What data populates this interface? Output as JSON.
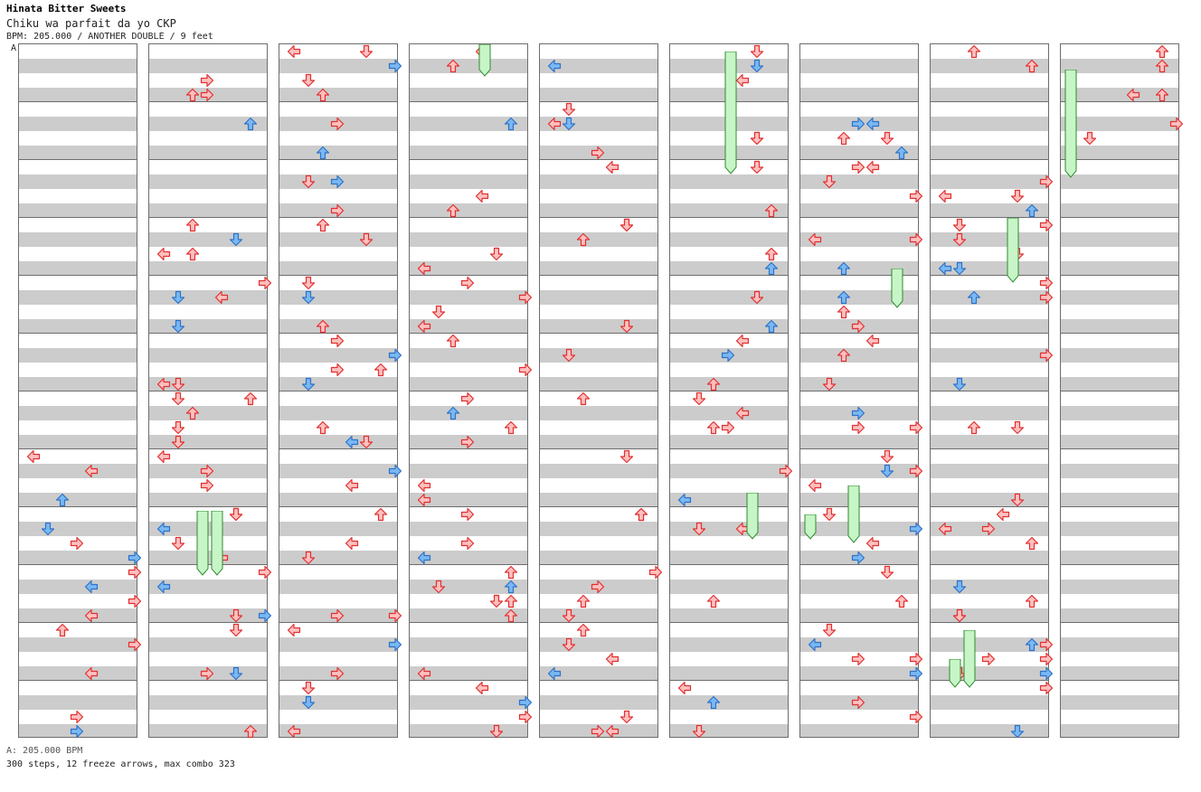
{
  "header": {
    "title": "Hinata Bitter Sweets",
    "song": "Chiku wa parfait da yo CKP",
    "info": "BPM: 205.000 / ANOTHER DOUBLE / 9 feet",
    "bpm_marker": "A"
  },
  "footer": {
    "bpm_text": "A: 205.000 BPM",
    "stats_text": "300 steps, 12 freeze arrows, max combo 323"
  },
  "colors": {
    "arrow_red_fill": "#ffc0c0",
    "arrow_red_stroke": "#e03030",
    "arrow_blue_fill": "#79b8f2",
    "arrow_blue_stroke": "#2f72c8",
    "freeze_fill": "#c7f5c7",
    "freeze_stroke": "#2e8b2e",
    "stripe_gray": "#cccccc",
    "border": "#6d6d6d",
    "bpm_line": "#3b79d6"
  },
  "chart": {
    "measures_per_column": 12,
    "column_count": 9
  }
}
